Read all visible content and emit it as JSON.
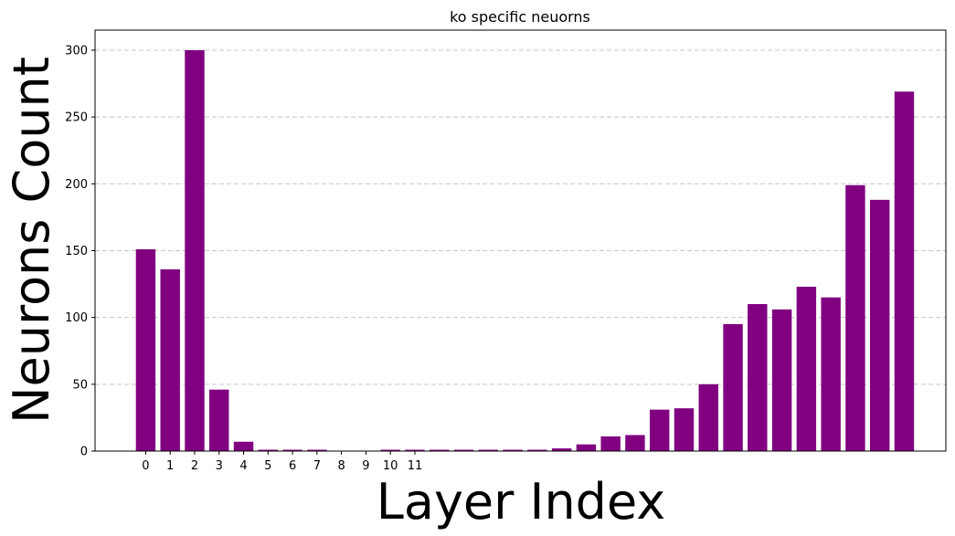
{
  "chart_data": {
    "type": "bar",
    "title": "ko specific neuorns",
    "xlabel": "Layer Index",
    "ylabel": "Neurons Count",
    "x": [
      0,
      1,
      2,
      3,
      4,
      5,
      6,
      7,
      8,
      9,
      10,
      11,
      12,
      13,
      14,
      15,
      16,
      17,
      18,
      19,
      20,
      21,
      22,
      23,
      24,
      25,
      26,
      27,
      28,
      29,
      30,
      31
    ],
    "x_tick_labels": [
      "0",
      "1",
      "2",
      "3",
      "4",
      "5",
      "6",
      "7",
      "8",
      "9",
      "10",
      "11"
    ],
    "values": [
      151,
      136,
      300,
      46,
      7,
      1,
      1,
      1,
      0,
      0,
      1,
      1,
      1,
      1,
      1,
      1,
      1,
      2,
      5,
      11,
      12,
      31,
      32,
      50,
      95,
      110,
      106,
      123,
      115,
      199,
      188,
      269
    ],
    "y_ticks": [
      0,
      50,
      100,
      150,
      200,
      250,
      300
    ],
    "xlim": [
      -2.07,
      32.7
    ],
    "ylim": [
      0,
      315
    ],
    "bar_color": "#800080",
    "grid": "y-dashed"
  }
}
